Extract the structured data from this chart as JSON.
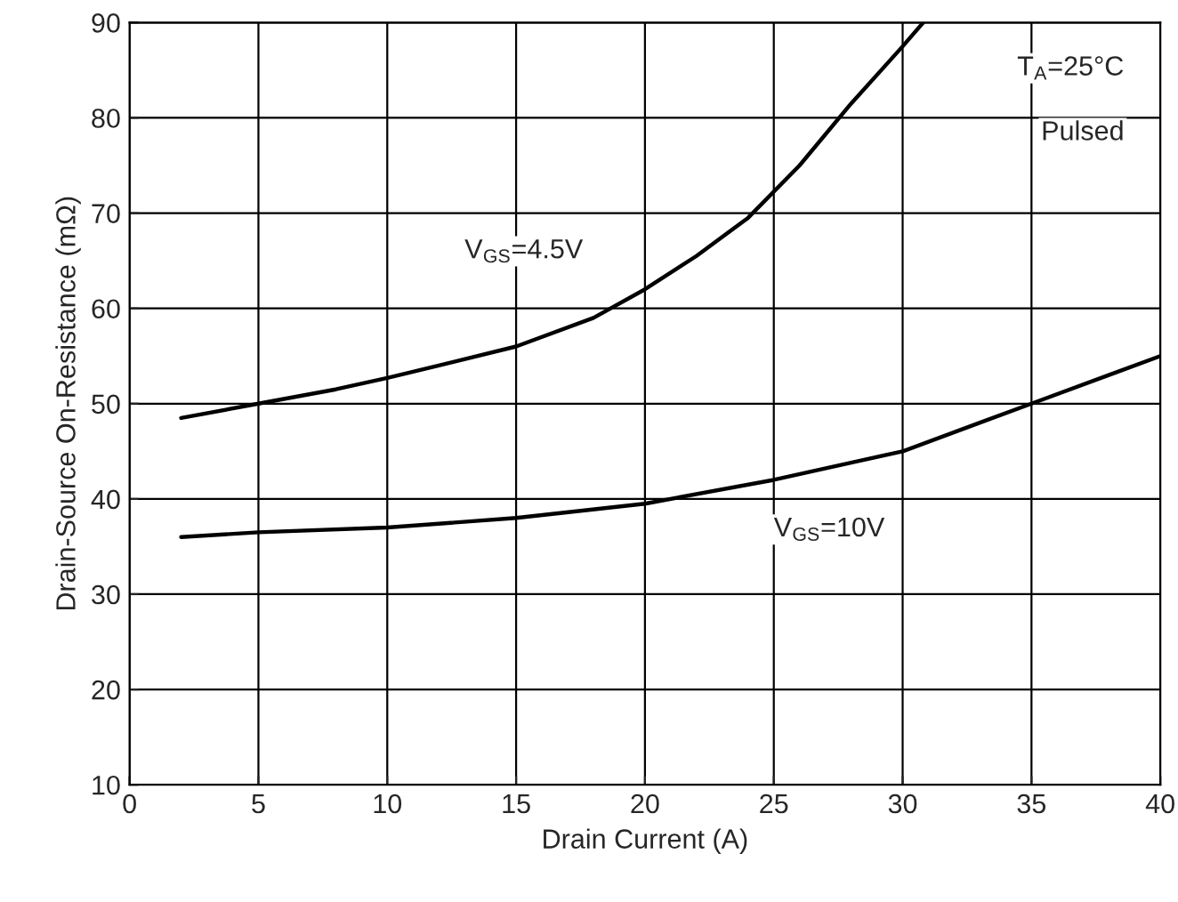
{
  "chart_data": {
    "type": "line",
    "xlabel": "Drain Current (A)",
    "ylabel": "Drain-Source On-Resistance (mΩ)",
    "xlim": [
      0,
      40
    ],
    "ylim": [
      10,
      90
    ],
    "xticks": [
      0,
      5,
      10,
      15,
      20,
      25,
      30,
      35,
      40
    ],
    "yticks": [
      10,
      20,
      30,
      40,
      50,
      60,
      70,
      80,
      90
    ],
    "grid": true,
    "marker": "none",
    "line_style": "solid",
    "series": [
      {
        "color": "#000000",
        "x": [
          2,
          5,
          8,
          10,
          12,
          15,
          18,
          20,
          22,
          24,
          26,
          28,
          30,
          30.8
        ],
        "values": [
          48.5,
          50,
          51.5,
          52.7,
          54,
          56,
          59,
          62,
          65.5,
          69.5,
          75,
          81.5,
          87.5,
          90
        ]
      },
      {
        "color": "#000000",
        "x": [
          2,
          5,
          10,
          15,
          20,
          25,
          28,
          30,
          33,
          35,
          38,
          40
        ],
        "values": [
          36,
          36.5,
          37,
          38,
          39.5,
          42,
          43.8,
          45,
          48,
          50,
          53,
          55
        ]
      }
    ],
    "annotations": [
      "V$_{GS}$=4.5V",
      "V$_{GS}$=10V",
      "T$_{A}$=25°C",
      "Pulsed"
    ]
  }
}
